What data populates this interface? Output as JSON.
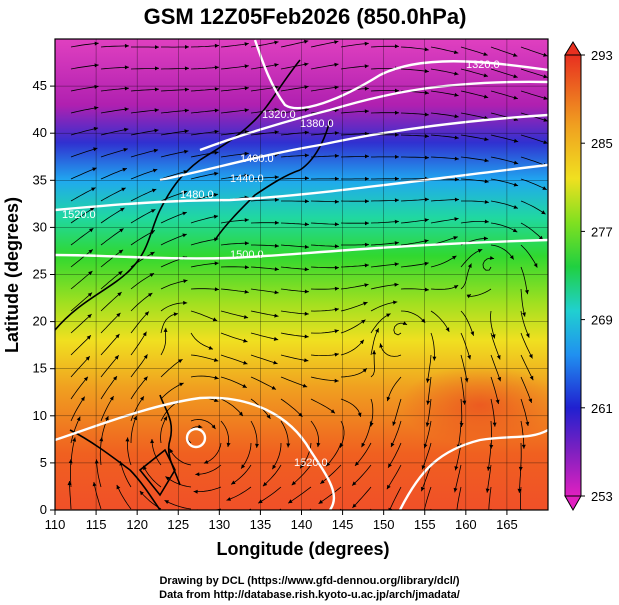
{
  "chart_data": {
    "type": "heatmap",
    "title": "GSM 12Z05Feb2026 (850.0hPa)",
    "xlabel": "Longitude (degrees)",
    "ylabel": "Latitude  (degrees)",
    "xlim": [
      110,
      170
    ],
    "ylim": [
      0,
      50
    ],
    "xticks": [
      110,
      115,
      120,
      125,
      130,
      135,
      140,
      145,
      150,
      155,
      160,
      165
    ],
    "yticks": [
      0,
      5,
      10,
      15,
      20,
      25,
      30,
      35,
      40,
      45
    ],
    "colorbar": {
      "min": 253,
      "max": 293,
      "ticks": [
        253,
        261,
        269,
        277,
        285,
        293
      ]
    },
    "grid": true,
    "contour_labels": [
      "1320.0",
      "1320.0",
      "1380.0",
      "1400.0",
      "1440.0",
      "1480.0",
      "1500.0",
      "1520.0",
      "1520.0"
    ],
    "temperature_field_samples": [
      {
        "lon": 115,
        "lat": 47,
        "value": 255
      },
      {
        "lon": 135,
        "lat": 47,
        "value": 258
      },
      {
        "lon": 155,
        "lat": 47,
        "value": 262
      },
      {
        "lon": 115,
        "lat": 40,
        "value": 266
      },
      {
        "lon": 140,
        "lat": 42,
        "value": 263
      },
      {
        "lon": 160,
        "lat": 42,
        "value": 267
      },
      {
        "lon": 120,
        "lat": 33,
        "value": 273
      },
      {
        "lon": 145,
        "lat": 33,
        "value": 275
      },
      {
        "lon": 165,
        "lat": 33,
        "value": 276
      },
      {
        "lon": 125,
        "lat": 25,
        "value": 280
      },
      {
        "lon": 150,
        "lat": 25,
        "value": 281
      },
      {
        "lon": 125,
        "lat": 15,
        "value": 286
      },
      {
        "lon": 160,
        "lat": 12,
        "value": 289
      },
      {
        "lon": 130,
        "lat": 5,
        "value": 287
      }
    ]
  },
  "footer": {
    "line1": "Drawing by DCL (https://www.gfd-dennou.org/library/dcl/)",
    "line2": "Data from http://database.rish.kyoto-u.ac.jp/arch/jmadata/"
  }
}
